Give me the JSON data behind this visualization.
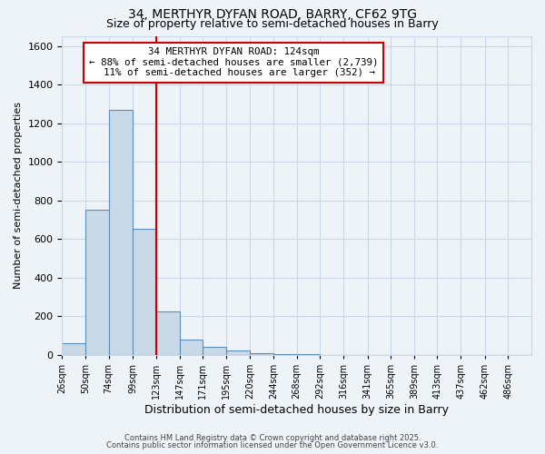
{
  "title_line1": "34, MERTHYR DYFAN ROAD, BARRY, CF62 9TG",
  "title_line2": "Size of property relative to semi-detached houses in Barry",
  "xlabel": "Distribution of semi-detached houses by size in Barry",
  "ylabel": "Number of semi-detached properties",
  "bar_edges": [
    26,
    50,
    74,
    99,
    123,
    147,
    171,
    195,
    220,
    244,
    268,
    292,
    316,
    341,
    365,
    389,
    413,
    437,
    462,
    486,
    510
  ],
  "bar_heights": [
    60,
    750,
    1270,
    650,
    225,
    80,
    40,
    20,
    5,
    2,
    1,
    0,
    0,
    0,
    0,
    0,
    0,
    0,
    0,
    0
  ],
  "bar_color": "#c9d9e8",
  "bar_edge_color": "#5b8db8",
  "property_line_x": 123,
  "vline_color": "#cc0000",
  "annotation_line1": "34 MERTHYR DYFAN ROAD: 124sqm",
  "annotation_line2": "← 88% of semi-detached houses are smaller (2,739)",
  "annotation_line3": "  11% of semi-detached houses are larger (352) →",
  "annotation_box_color": "#ffffff",
  "annotation_box_edge": "#cc0000",
  "ylim": [
    0,
    1650
  ],
  "yticks": [
    0,
    200,
    400,
    600,
    800,
    1000,
    1200,
    1400,
    1600
  ],
  "grid_color": "#c8d8e8",
  "background_color": "#eef3f8",
  "footer_line1": "Contains HM Land Registry data © Crown copyright and database right 2025.",
  "footer_line2": "Contains public sector information licensed under the Open Government Licence v3.0."
}
